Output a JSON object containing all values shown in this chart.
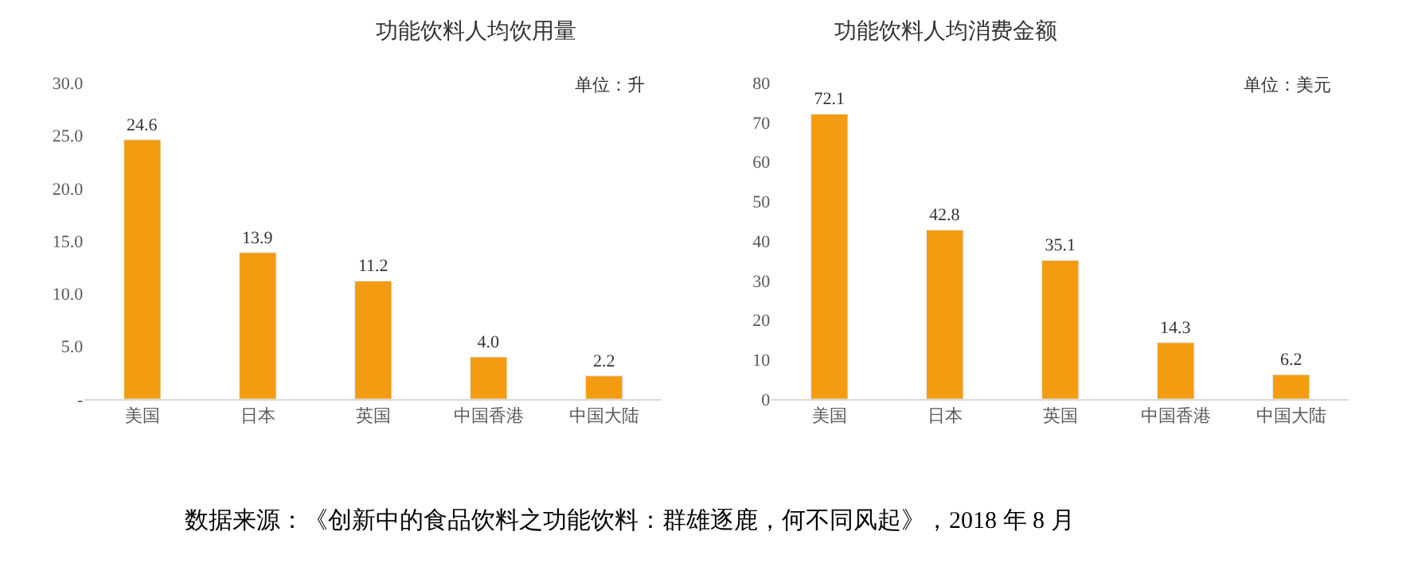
{
  "chart_data": [
    {
      "type": "bar",
      "title": "功能饮料人均饮用量",
      "categories": [
        "美国",
        "日本",
        "英国",
        "中国香港",
        "中国大陆"
      ],
      "values": [
        24.6,
        13.9,
        11.2,
        4.0,
        2.2
      ],
      "value_labels": [
        "24.6",
        "13.9",
        "11.2",
        "4.0",
        "2.2"
      ],
      "color": "#f39c12",
      "ylim": [
        0,
        30
      ],
      "yticks": [
        {
          "value": 0,
          "label": "-"
        },
        {
          "value": 5,
          "label": "5.0"
        },
        {
          "value": 10,
          "label": "10.0"
        },
        {
          "value": 15,
          "label": "15.0"
        },
        {
          "value": 20,
          "label": "20.0"
        },
        {
          "value": 25,
          "label": "25.0"
        },
        {
          "value": 30,
          "label": "30.0"
        }
      ],
      "annotations": [
        "单位：升",
        "数据来源：《创新中的食品饮料之功能饮料：群雄逐鹿，何不同风起》，2018 年 8 月"
      ]
    },
    {
      "type": "bar",
      "title": "功能饮料人均消费金额",
      "categories": [
        "美国",
        "日本",
        "英国",
        "中国香港",
        "中国大陆"
      ],
      "values": [
        72.1,
        42.8,
        35.1,
        14.3,
        6.2
      ],
      "data_labels": true,
      "color": "#f39c12",
      "ylim": [
        0,
        80
      ],
      "yticks": [
        0,
        10,
        20,
        30,
        40,
        50,
        60,
        70,
        80
      ],
      "annotations": [
        "单位：美元"
      ]
    }
  ]
}
